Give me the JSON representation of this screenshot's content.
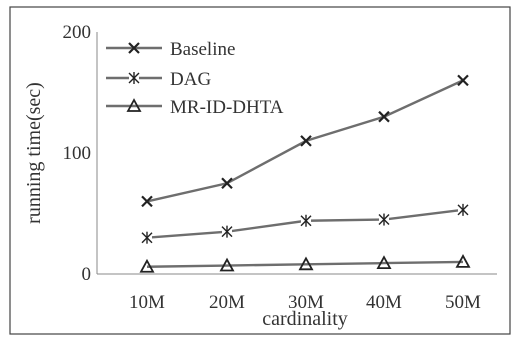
{
  "chart_data": {
    "type": "line",
    "xlabel": "cardinality",
    "ylabel": "running time(sec)",
    "categories": [
      "10M",
      "20M",
      "30M",
      "40M",
      "50M"
    ],
    "ylim": [
      0,
      200
    ],
    "yticks": [
      0,
      100,
      200
    ],
    "grid": false,
    "legend_position": "top-left",
    "series": [
      {
        "name": "Baseline",
        "marker": "x",
        "values": [
          60,
          75,
          110,
          130,
          160
        ]
      },
      {
        "name": "DAG",
        "marker": "asterisk",
        "values": [
          30,
          35,
          44,
          45,
          53
        ]
      },
      {
        "name": "MR-ID-DHTA",
        "marker": "triangle",
        "values": [
          6,
          7,
          8,
          9,
          10
        ]
      }
    ],
    "colors": {
      "line": "#6e6e6e",
      "marker": "#222222",
      "frame": "#444444"
    }
  }
}
